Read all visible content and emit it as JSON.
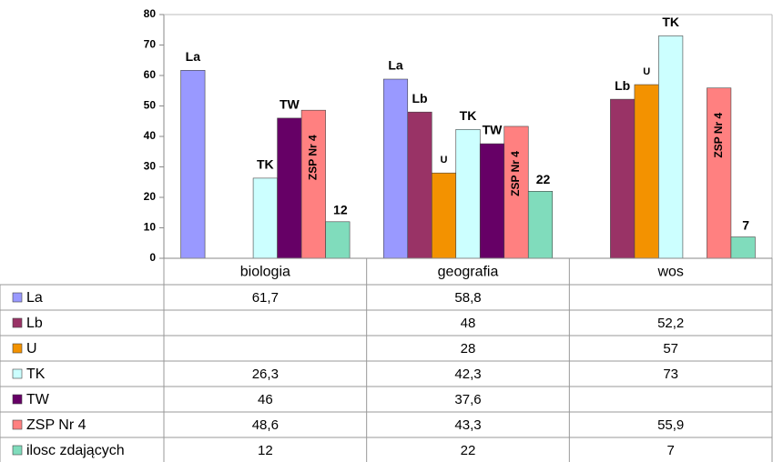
{
  "chart_data": {
    "type": "bar",
    "categories": [
      "biologia",
      "geografia",
      "wos"
    ],
    "series": [
      {
        "name": "La",
        "color": "#9999ff",
        "values": [
          61.7,
          58.8,
          null
        ],
        "value_labels": [
          "61,7",
          "58,8",
          null
        ]
      },
      {
        "name": "Lb",
        "color": "#993366",
        "values": [
          null,
          48,
          52.2
        ],
        "value_labels": [
          null,
          "48",
          "52,2"
        ]
      },
      {
        "name": "U",
        "color": "#f39200",
        "values": [
          null,
          28,
          57
        ],
        "value_labels": [
          null,
          "28",
          "57"
        ]
      },
      {
        "name": "TK",
        "color": "#ccffff",
        "values": [
          26.3,
          42.3,
          73
        ],
        "value_labels": [
          "26,3",
          "42,3",
          "73"
        ]
      },
      {
        "name": "TW",
        "color": "#660066",
        "values": [
          46,
          37.6,
          null
        ],
        "value_labels": [
          "46",
          "37,6",
          null
        ]
      },
      {
        "name": "ZSP Nr 4",
        "color": "#ff8080",
        "values": [
          48.6,
          43.3,
          55.9
        ],
        "value_labels": [
          "48,6",
          "43,3",
          "55,9"
        ]
      },
      {
        "name": "ilosc zdających",
        "color": "#80dcbc",
        "values": [
          12,
          22,
          7
        ],
        "value_labels": [
          "12",
          "22",
          "7"
        ]
      }
    ],
    "ylim": [
      0,
      80
    ],
    "yticks": [
      0,
      10,
      20,
      30,
      40,
      50,
      60,
      70,
      80
    ]
  }
}
